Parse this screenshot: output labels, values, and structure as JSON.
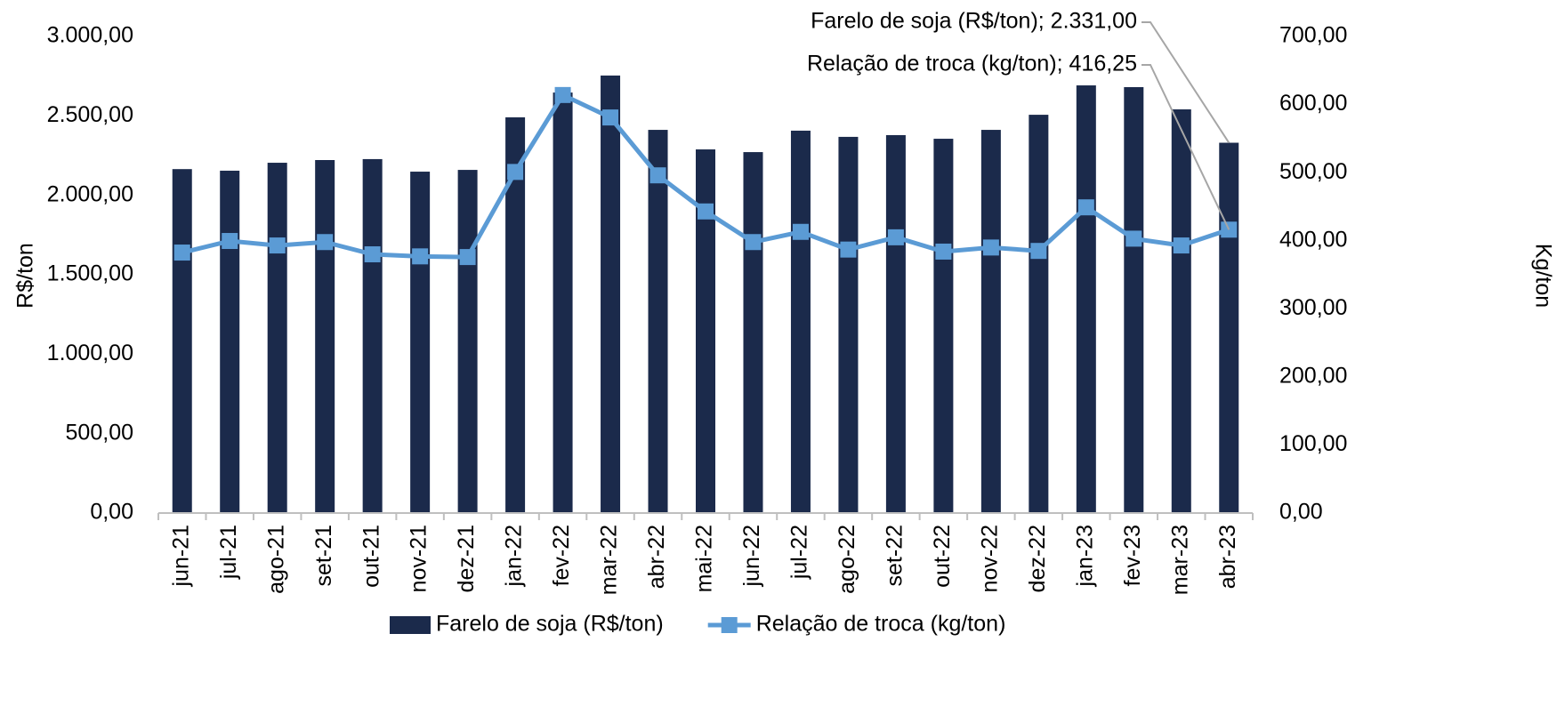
{
  "chart_data": {
    "type": "bar-line",
    "categories": [
      "jun-21",
      "jul-21",
      "ago-21",
      "set-21",
      "out-21",
      "nov-21",
      "dez-21",
      "jan-22",
      "fev-22",
      "mar-22",
      "abr-22",
      "mai-22",
      "jun-22",
      "jul-22",
      "ago-22",
      "set-22",
      "out-22",
      "nov-22",
      "dez-22",
      "jan-23",
      "fev-23",
      "mar-23",
      "abr-23"
    ],
    "series": [
      {
        "name": "Farelo de soja (R$/ton)",
        "type": "bar",
        "color": "#1b2a4b",
        "values": [
          2165,
          2155,
          2205,
          2222,
          2228,
          2149,
          2160,
          2491,
          2647,
          2754,
          2412,
          2289,
          2272,
          2407,
          2368,
          2379,
          2356,
          2412,
          2507,
          2692,
          2681,
          2541,
          2331
        ]
      },
      {
        "name": "Relação de troca (kg/ton)",
        "type": "line",
        "axis": "y2",
        "color": "#5b9bd5",
        "values": [
          382.6,
          399.6,
          393,
          398,
          380,
          377,
          376,
          501,
          614,
          581,
          496,
          443,
          398,
          413,
          387,
          405,
          384,
          390,
          385,
          449,
          403,
          393,
          416.25
        ]
      }
    ],
    "annotations": [
      "Farelo de soja (R$/ton); 2.331,00",
      "Relação de troca (kg/ton); 416,25"
    ],
    "ylabel": "R$/ton",
    "y2label": "Kg/ton",
    "ylim": [
      0,
      3000
    ],
    "yticks": [
      {
        "value": 0,
        "label": "0,00"
      },
      {
        "value": 500,
        "label": "500,00"
      },
      {
        "value": 1000,
        "label": "1.000,00"
      },
      {
        "value": 1500,
        "label": "1.500,00"
      },
      {
        "value": 2000,
        "label": "2.000,00"
      },
      {
        "value": 2500,
        "label": "2.500,00"
      },
      {
        "value": 3000,
        "label": "3.000,00"
      }
    ],
    "y2lim": [
      0,
      700
    ],
    "y2ticks": [
      {
        "value": 0,
        "label": "0,00"
      },
      {
        "value": 100,
        "label": "100,00"
      },
      {
        "value": 200,
        "label": "200,00"
      },
      {
        "value": 300,
        "label": "300,00"
      },
      {
        "value": 400,
        "label": "400,00"
      },
      {
        "value": 500,
        "label": "500,00"
      },
      {
        "value": 600,
        "label": "600,00"
      },
      {
        "value": 700,
        "label": "700,00"
      }
    ],
    "grid": false,
    "legend": "bottom"
  }
}
